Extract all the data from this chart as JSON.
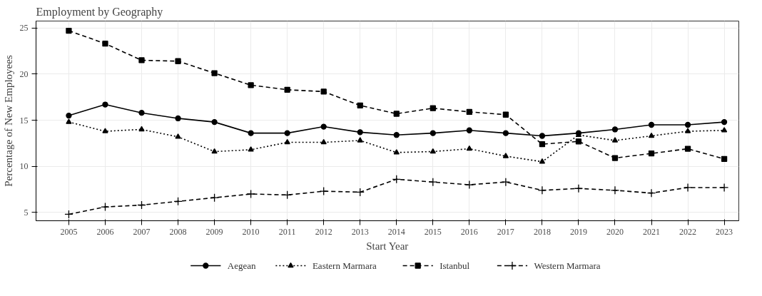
{
  "chart_data": {
    "type": "line",
    "title": "Employment by Geography",
    "xlabel": "Start Year",
    "ylabel": "Percentage of New Employees",
    "x": [
      2005,
      2006,
      2007,
      2008,
      2009,
      2010,
      2011,
      2012,
      2013,
      2014,
      2015,
      2016,
      2017,
      2018,
      2019,
      2020,
      2021,
      2022,
      2023
    ],
    "xlim": [
      2004.1,
      2023.4
    ],
    "xticks": [
      2005,
      2006,
      2007,
      2008,
      2009,
      2010,
      2011,
      2012,
      2013,
      2014,
      2015,
      2016,
      2017,
      2018,
      2019,
      2020,
      2021,
      2022,
      2023
    ],
    "ylim": [
      4.1,
      25.75
    ],
    "yticks": [
      5,
      10,
      15,
      20,
      25
    ],
    "grid": true,
    "legend": "bottom",
    "series": [
      {
        "name": "Aegean",
        "color": "#000000",
        "marker": "circle",
        "line_style": "solid",
        "values": [
          15.5,
          16.7,
          15.8,
          15.2,
          14.8,
          13.6,
          13.6,
          14.3,
          13.7,
          13.4,
          13.6,
          13.9,
          13.6,
          13.3,
          13.6,
          14.0,
          14.5,
          14.5,
          14.8
        ]
      },
      {
        "name": "Eastern Marmara",
        "color": "#000000",
        "marker": "triangle",
        "line_style": "dotted",
        "values": [
          14.8,
          13.8,
          14.0,
          13.2,
          11.6,
          11.8,
          12.6,
          12.6,
          12.8,
          11.5,
          11.6,
          11.9,
          11.1,
          10.5,
          13.4,
          12.8,
          13.3,
          13.8,
          13.9
        ]
      },
      {
        "name": "Istanbul",
        "color": "#000000",
        "marker": "square",
        "line_style": "dashed",
        "values": [
          24.7,
          23.3,
          21.5,
          21.4,
          20.1,
          18.8,
          18.3,
          18.1,
          16.6,
          15.7,
          16.3,
          15.9,
          15.6,
          12.4,
          12.7,
          10.9,
          11.4,
          11.9,
          10.8
        ]
      },
      {
        "name": "Western Marmara",
        "color": "#000000",
        "marker": "cross",
        "line_style": "dashed",
        "values": [
          4.8,
          5.6,
          5.8,
          6.2,
          6.6,
          7.0,
          6.9,
          7.3,
          7.2,
          8.6,
          8.3,
          8.0,
          8.3,
          7.4,
          7.6,
          7.4,
          7.1,
          7.7,
          7.7
        ]
      }
    ]
  }
}
